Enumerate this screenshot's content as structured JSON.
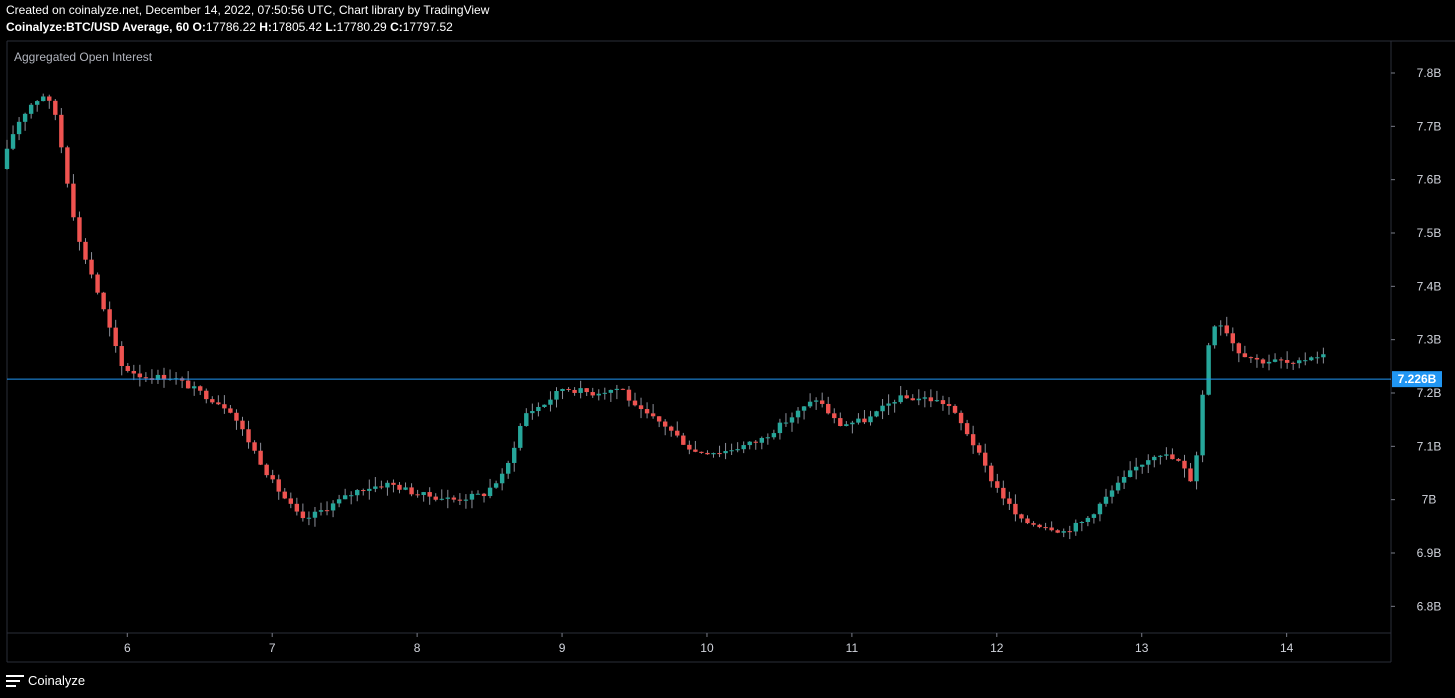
{
  "header": {
    "line1": "Created on coinalyze.net, December 14, 2022, 07:50:56 UTC, Chart library by TradingView",
    "symbol": "Coinalyze:BTC/USD Average, 60",
    "o_label": "O:",
    "o_value": "17786.22",
    "h_label": "H:",
    "h_value": "17805.42",
    "l_label": "L:",
    "l_value": "17780.29",
    "c_label": "C:",
    "c_value": "17797.52"
  },
  "footer": {
    "brand": "Coinalyze",
    "icon": "menu-icon"
  },
  "colors": {
    "up": "#26a69a",
    "down": "#ef5350",
    "price_line": "#2196f3",
    "grid_border": "#2a2e39",
    "text": "#d1d4dc"
  },
  "chart_data": {
    "type": "candlestick",
    "title": "Aggregated Open Interest",
    "x_ticks": [
      "6",
      "7",
      "8",
      "9",
      "10",
      "11",
      "12",
      "13",
      "14"
    ],
    "y_ticks": [
      "6.8B",
      "6.9B",
      "7B",
      "7.1B",
      "7.2B",
      "7.3B",
      "7.4B",
      "7.5B",
      "7.6B",
      "7.7B",
      "7.8B"
    ],
    "ylim": [
      6.75,
      7.86
    ],
    "x_range_days": [
      5.17,
      14.72
    ],
    "current_value": 7.226,
    "current_label": "7.226B",
    "anchors": [
      [
        5.17,
        7.62
      ],
      [
        5.27,
        7.7
      ],
      [
        5.37,
        7.74
      ],
      [
        5.47,
        7.76
      ],
      [
        5.55,
        7.72
      ],
      [
        5.62,
        7.61
      ],
      [
        5.7,
        7.49
      ],
      [
        5.8,
        7.42
      ],
      [
        5.92,
        7.32
      ],
      [
        6.0,
        7.25
      ],
      [
        6.15,
        7.23
      ],
      [
        6.35,
        7.23
      ],
      [
        6.55,
        7.2
      ],
      [
        6.75,
        7.17
      ],
      [
        6.9,
        7.1
      ],
      [
        7.05,
        7.03
      ],
      [
        7.25,
        6.96
      ],
      [
        7.45,
        6.99
      ],
      [
        7.65,
        7.02
      ],
      [
        7.85,
        7.03
      ],
      [
        8.05,
        7.01
      ],
      [
        8.3,
        7.0
      ],
      [
        8.5,
        7.01
      ],
      [
        8.65,
        7.05
      ],
      [
        8.78,
        7.16
      ],
      [
        8.92,
        7.18
      ],
      [
        9.05,
        7.21
      ],
      [
        9.25,
        7.2
      ],
      [
        9.45,
        7.21
      ],
      [
        9.55,
        7.17
      ],
      [
        9.75,
        7.14
      ],
      [
        9.95,
        7.09
      ],
      [
        10.15,
        7.09
      ],
      [
        10.4,
        7.11
      ],
      [
        10.6,
        7.15
      ],
      [
        10.8,
        7.19
      ],
      [
        10.95,
        7.14
      ],
      [
        11.15,
        7.15
      ],
      [
        11.35,
        7.19
      ],
      [
        11.55,
        7.19
      ],
      [
        11.7,
        7.18
      ],
      [
        11.85,
        7.12
      ],
      [
        12.0,
        7.04
      ],
      [
        12.2,
        6.96
      ],
      [
        12.4,
        6.95
      ],
      [
        12.5,
        6.94
      ],
      [
        12.65,
        6.96
      ],
      [
        12.85,
        7.02
      ],
      [
        13.0,
        7.06
      ],
      [
        13.15,
        7.09
      ],
      [
        13.3,
        7.07
      ],
      [
        13.4,
        7.03
      ],
      [
        13.45,
        7.17
      ],
      [
        13.52,
        7.33
      ],
      [
        13.6,
        7.33
      ],
      [
        13.7,
        7.28
      ],
      [
        13.85,
        7.26
      ],
      [
        14.0,
        7.26
      ],
      [
        14.1,
        7.25
      ],
      [
        14.2,
        7.27
      ],
      [
        14.28,
        7.27
      ]
    ]
  }
}
